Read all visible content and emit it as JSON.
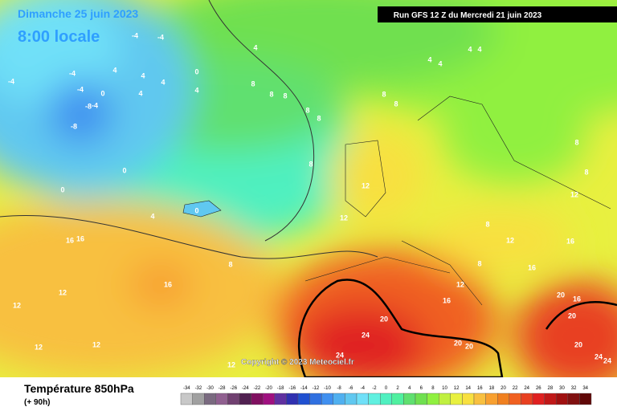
{
  "header": {
    "date": "Dimanche 25 juin 2023",
    "time": "8:00 locale",
    "run": "Run GFS 12 Z du Mercredi 21 juin 2023"
  },
  "copyright": "Copyright © 2023 Meteociel.fr",
  "footer": {
    "title": "Température 850hPa",
    "lead": "(+ 90h)"
  },
  "legend": {
    "values": [
      -34,
      -32,
      -30,
      -28,
      -26,
      -24,
      -22,
      -20,
      -18,
      -16,
      -14,
      -12,
      -10,
      -8,
      -6,
      -4,
      -2,
      0,
      2,
      4,
      6,
      8,
      10,
      12,
      14,
      16,
      18,
      20,
      22,
      24,
      26,
      28,
      30,
      32,
      34
    ],
    "colors": [
      "#c8c8c8",
      "#a0a0a0",
      "#7a6a80",
      "#906090",
      "#704070",
      "#502050",
      "#801060",
      "#a01080",
      "#6030a0",
      "#3030b0",
      "#2050d0",
      "#3070e0",
      "#4090f0",
      "#50b0f0",
      "#60c8f0",
      "#70e0f8",
      "#60f0e0",
      "#50f0c0",
      "#50f0a0",
      "#60e070",
      "#70e050",
      "#90f040",
      "#c0f040",
      "#e8f040",
      "#f8e040",
      "#f8c040",
      "#f8a030",
      "#f08020",
      "#f06020",
      "#e84020",
      "#e02020",
      "#c01818",
      "#a01010",
      "#801010",
      "#600808"
    ]
  },
  "map_labels": [
    -4,
    -4,
    -4,
    -4,
    -4,
    -8,
    -4,
    -8,
    4,
    4,
    4,
    4,
    0,
    0,
    4,
    0,
    0,
    0,
    4,
    4,
    4,
    4,
    4,
    4,
    8,
    8,
    8,
    8,
    8,
    8,
    8,
    8,
    8,
    8,
    12,
    12,
    12,
    12,
    8,
    16,
    16,
    16,
    16,
    16,
    8,
    12,
    16,
    12,
    12,
    12,
    12,
    12,
    8,
    20,
    24,
    24,
    20,
    20,
    20,
    20,
    20,
    24,
    24,
    16
  ]
}
